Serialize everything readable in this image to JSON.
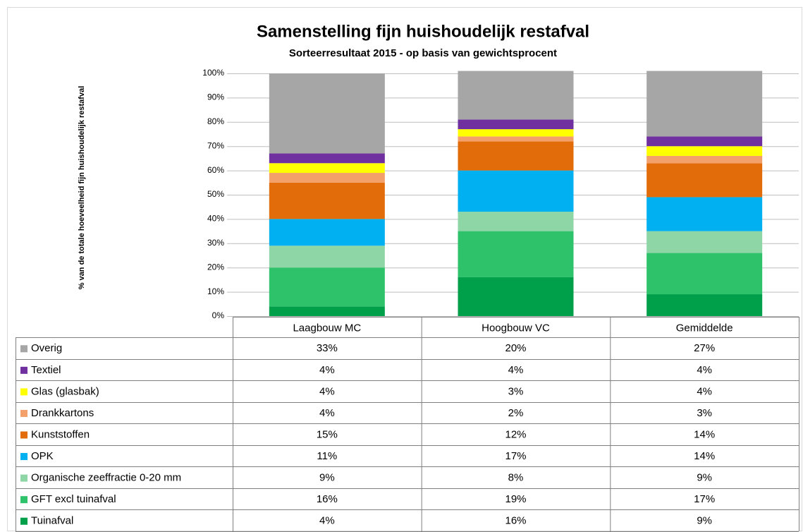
{
  "chart_data": {
    "type": "stacked_bar",
    "title": "Samenstelling fijn huishoudelijk restafval",
    "subtitle": "Sorteerresultaat 2015 - op  basis van gewichtsprocent",
    "y_label": "% van de totale hoeveelheid fijn huishoudelijk restafval",
    "categories": [
      "Laagbouw MC",
      "Hoogbouw VC",
      "Gemiddelde"
    ],
    "ylim": [
      0,
      100
    ],
    "yticks": [
      {
        "value": 0,
        "label": "0%"
      },
      {
        "value": 10,
        "label": "10%"
      },
      {
        "value": 20,
        "label": "20%"
      },
      {
        "value": 30,
        "label": "30%"
      },
      {
        "value": 40,
        "label": "40%"
      },
      {
        "value": 50,
        "label": "50%"
      },
      {
        "value": 60,
        "label": "60%"
      },
      {
        "value": 70,
        "label": "70%"
      },
      {
        "value": 80,
        "label": "80%"
      },
      {
        "value": 90,
        "label": "90%"
      },
      {
        "value": 100,
        "label": "100%"
      }
    ],
    "grid": true,
    "series": [
      {
        "name": "Overig",
        "color": "#a6a6a6",
        "values": [
          33,
          20,
          27
        ],
        "value_labels": [
          "33%",
          "20%",
          "27%"
        ]
      },
      {
        "name": "Textiel",
        "color": "#7030a0",
        "values": [
          4,
          4,
          4
        ],
        "value_labels": [
          "4%",
          "4%",
          "4%"
        ]
      },
      {
        "name": "Glas (glasbak)",
        "color": "#ffff00",
        "values": [
          4,
          3,
          4
        ],
        "value_labels": [
          "4%",
          "3%",
          "4%"
        ]
      },
      {
        "name": "Drankkartons",
        "color": "#f4a06a",
        "values": [
          4,
          2,
          3
        ],
        "value_labels": [
          "4%",
          "2%",
          "3%"
        ]
      },
      {
        "name": "Kunststoffen",
        "color": "#e36c0a",
        "values": [
          15,
          12,
          14
        ],
        "value_labels": [
          "15%",
          "12%",
          "14%"
        ]
      },
      {
        "name": "OPK",
        "color": "#00b0f0",
        "values": [
          11,
          17,
          14
        ],
        "value_labels": [
          "11%",
          "17%",
          "14%"
        ]
      },
      {
        "name": "Organische zeeffractie 0-20 mm",
        "color": "#8fd6a6",
        "values": [
          9,
          8,
          9
        ],
        "value_labels": [
          "9%",
          "8%",
          "9%"
        ]
      },
      {
        "name": "GFT excl tuinafval",
        "color": "#2ec26a",
        "values": [
          16,
          19,
          17
        ],
        "value_labels": [
          "16%",
          "19%",
          "17%"
        ]
      },
      {
        "name": "Tuinafval",
        "color": "#00a04a",
        "values": [
          4,
          16,
          9
        ],
        "value_labels": [
          "4%",
          "16%",
          "9%"
        ]
      }
    ]
  }
}
